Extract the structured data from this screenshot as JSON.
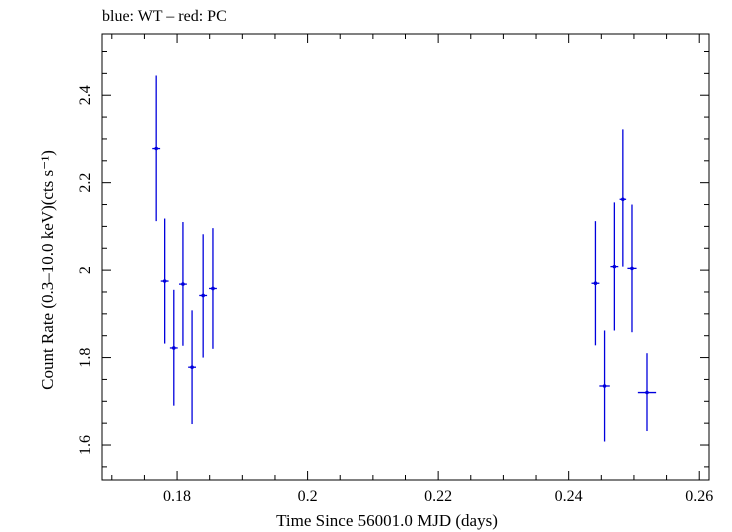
{
  "chart_data": {
    "type": "scatter",
    "title": "blue: WT – red: PC",
    "xlabel": "Time Since 56001.0 MJD (days)",
    "ylabel": "Count Rate (0.3–10.0 keV)(cts s⁻¹)",
    "xlim": [
      0.1685,
      0.2615
    ],
    "ylim": [
      1.52,
      2.54
    ],
    "xticks": [
      0.18,
      0.2,
      0.22,
      0.24,
      0.26
    ],
    "xtick_labels": [
      "0.18",
      "0.2",
      "0.22",
      "0.24",
      "0.26"
    ],
    "yticks": [
      1.6,
      1.8,
      2.0,
      2.2,
      2.4
    ],
    "ytick_labels": [
      "1.6",
      "1.8",
      "2",
      "2.2",
      "2.4"
    ],
    "grid": false,
    "series": [
      {
        "name": "WT",
        "color": "#0000dd",
        "points": [
          {
            "x": 0.1768,
            "y": 2.278,
            "xerr": 0.0006,
            "ylo": 2.112,
            "yhi": 2.445
          },
          {
            "x": 0.1781,
            "y": 1.975,
            "xerr": 0.0006,
            "ylo": 1.832,
            "yhi": 2.118
          },
          {
            "x": 0.1795,
            "y": 1.822,
            "xerr": 0.0006,
            "ylo": 1.69,
            "yhi": 1.955
          },
          {
            "x": 0.1809,
            "y": 1.968,
            "xerr": 0.0006,
            "ylo": 1.827,
            "yhi": 2.11
          },
          {
            "x": 0.1823,
            "y": 1.778,
            "xerr": 0.0006,
            "ylo": 1.648,
            "yhi": 1.908
          },
          {
            "x": 0.184,
            "y": 1.942,
            "xerr": 0.0006,
            "ylo": 1.8,
            "yhi": 2.082
          },
          {
            "x": 0.1855,
            "y": 1.958,
            "xerr": 0.0006,
            "ylo": 1.82,
            "yhi": 2.096
          },
          {
            "x": 0.2441,
            "y": 1.97,
            "xerr": 0.0006,
            "ylo": 1.828,
            "yhi": 2.112
          },
          {
            "x": 0.2455,
            "y": 1.735,
            "xerr": 0.0008,
            "ylo": 1.608,
            "yhi": 1.862
          },
          {
            "x": 0.247,
            "y": 2.008,
            "xerr": 0.0006,
            "ylo": 1.862,
            "yhi": 2.155
          },
          {
            "x": 0.2483,
            "y": 2.162,
            "xerr": 0.0005,
            "ylo": 2.008,
            "yhi": 2.322
          },
          {
            "x": 0.2497,
            "y": 2.004,
            "xerr": 0.0007,
            "ylo": 1.858,
            "yhi": 2.15
          },
          {
            "x": 0.252,
            "y": 1.72,
            "xerr": 0.0014,
            "ylo": 1.632,
            "yhi": 1.81
          }
        ]
      }
    ]
  }
}
